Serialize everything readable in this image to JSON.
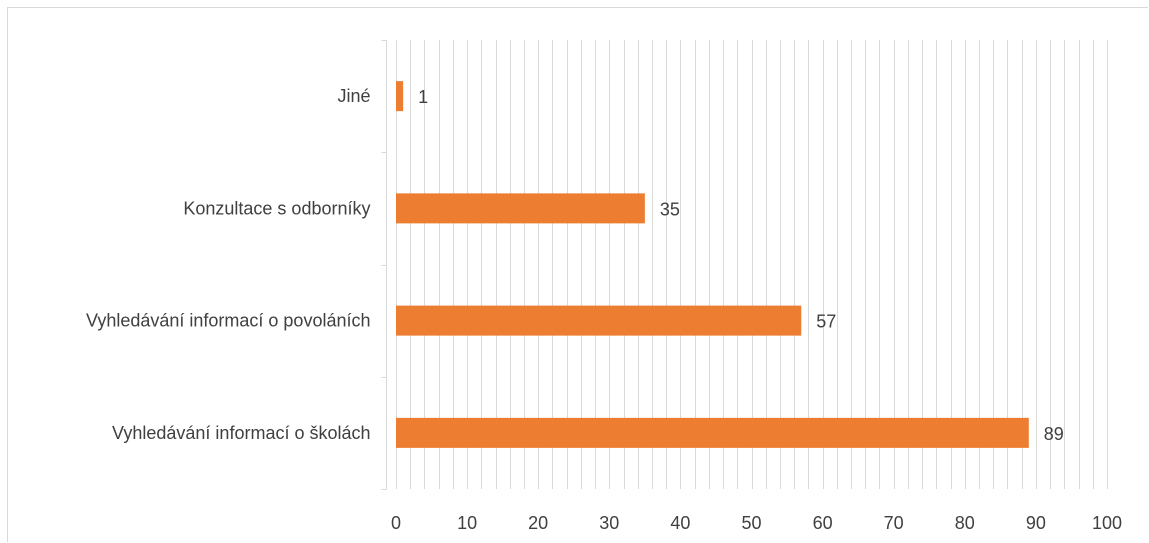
{
  "chart_data": {
    "type": "bar",
    "orientation": "horizontal",
    "categories": [
      "Jiné",
      "Konzultace s odborníky",
      "Vyhledávání informací o povoláních",
      "Vyhledávání informací o školách"
    ],
    "values": [
      1,
      35,
      57,
      89
    ],
    "xlim": [
      0,
      100
    ],
    "x_ticks": [
      0,
      10,
      20,
      30,
      40,
      50,
      60,
      70,
      80,
      90,
      100
    ],
    "minor_grid_step": 2,
    "grid": true,
    "data_labels": true,
    "title": "",
    "xlabel": "",
    "ylabel": "",
    "bar_color": "#ED7D31",
    "grid_color": "#d9d9d9",
    "text_color": "#404040"
  }
}
